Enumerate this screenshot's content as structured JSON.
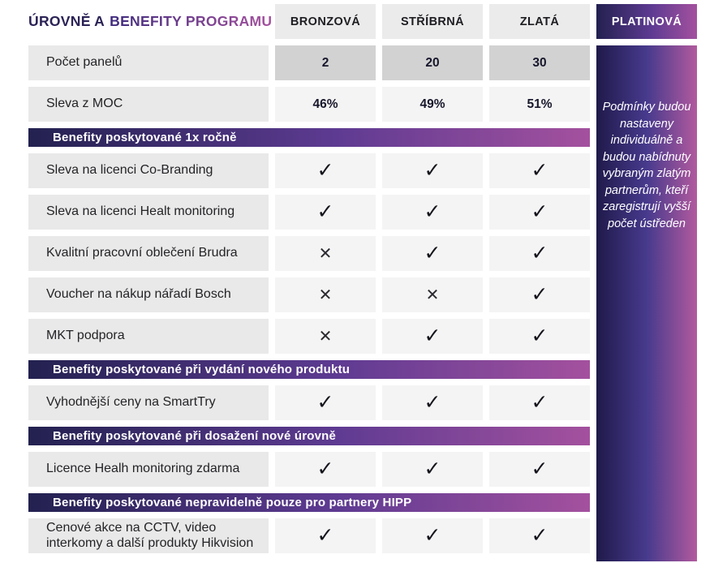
{
  "title": {
    "part1": "ÚROVNĚ A",
    "part2": "BENEFITY PROGRAMU"
  },
  "tiers": [
    "BRONZOVÁ",
    "STŘÍBRNÁ",
    "ZLATÁ"
  ],
  "platinum": {
    "label": "PLATINOVÁ",
    "note": "Podmínky budou nastaveny individuálně a budou nabídnuty vybraným zlatým partnerům, kteří zaregistrují vyšší počet ústředen"
  },
  "rows": [
    {
      "type": "value",
      "label": "Počet panelů",
      "shaded": true,
      "values": [
        "2",
        "20",
        "30"
      ]
    },
    {
      "type": "value",
      "label": "Sleva z MOC",
      "shaded": false,
      "values": [
        "46%",
        "49%",
        "51%"
      ]
    },
    {
      "type": "section",
      "label": "Benefity poskytované 1x ročně"
    },
    {
      "type": "benefit",
      "label": "Sleva na licenci Co-Branding",
      "marks": [
        "check",
        "check",
        "check"
      ]
    },
    {
      "type": "benefit",
      "label": "Sleva na licenci Healt monitoring",
      "marks": [
        "check",
        "check",
        "check"
      ]
    },
    {
      "type": "benefit",
      "label": "Kvalitní pracovní oblečení Brudra",
      "marks": [
        "cross",
        "check",
        "check"
      ]
    },
    {
      "type": "benefit",
      "label": "Voucher na nákup nářadí Bosch",
      "marks": [
        "cross",
        "cross",
        "check"
      ]
    },
    {
      "type": "benefit",
      "label": "MKT podpora",
      "marks": [
        "cross",
        "check",
        "check"
      ]
    },
    {
      "type": "section",
      "label": "Benefity poskytované při vydání nového produktu"
    },
    {
      "type": "benefit",
      "label": "Vyhodnější ceny na SmartTry",
      "marks": [
        "check",
        "check",
        "check"
      ]
    },
    {
      "type": "section",
      "label": "Benefity poskytované při dosažení nové úrovně"
    },
    {
      "type": "benefit",
      "label": "Licence Healh monitoring zdarma",
      "marks": [
        "check",
        "check",
        "check"
      ]
    },
    {
      "type": "section",
      "label": "Benefity poskytované nepravidelně pouze pro partnery HIPP"
    },
    {
      "type": "benefit",
      "label": "Cenové akce na CCTV, video interkomy a další produkty Hikvision",
      "marks": [
        "check",
        "check",
        "check"
      ]
    }
  ],
  "icons": {
    "check": "✓",
    "cross": "✕"
  },
  "colors": {
    "navy": "#2b2356",
    "magenta": "#a4519e",
    "title-grad-start": "#3f2b7d",
    "tier-bg": "#ebebeb",
    "label-bg": "#e9e9e9",
    "mark-bg": "#f4f4f4",
    "value-shaded-bg": "#d2d2d2",
    "grad-navy": "#232150",
    "grad-indigo": "#5e3b92",
    "grad-magenta": "#a4519e",
    "platinum-left": "#1f1a4a",
    "platinum-mid": "#473a8d",
    "platinum-right": "#b25a9e"
  }
}
